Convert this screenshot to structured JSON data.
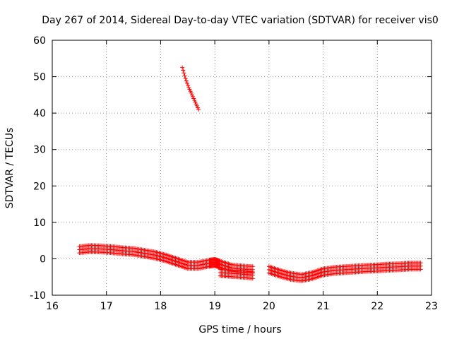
{
  "chart_data": {
    "type": "scatter",
    "title": "Day 267 of 2014, Sidereal Day-to-day VTEC variation (SDTVAR) for receiver vis0",
    "xlabel": "GPS time / hours",
    "ylabel": "SDTVAR / TECUs",
    "xlim": [
      16,
      23
    ],
    "ylim": [
      -10,
      60
    ],
    "xticks": [
      16,
      17,
      18,
      19,
      20,
      21,
      22,
      23
    ],
    "yticks": [
      -10,
      0,
      10,
      20,
      30,
      40,
      50,
      60
    ],
    "grid": true,
    "marker": "plus",
    "color": "#ff0000",
    "series": [
      {
        "x": [
          18.4,
          18.43,
          18.46,
          18.49,
          18.52,
          18.55,
          18.58,
          18.61,
          18.64,
          18.67,
          18.7
        ],
        "y": [
          52.5,
          51.0,
          49.5,
          48.2,
          47.0,
          46.0,
          45.0,
          44.0,
          43.0,
          42.0,
          41.0
        ]
      },
      {
        "x": [
          16.5,
          16.7,
          16.9,
          17.1,
          17.3,
          17.5,
          17.7,
          17.9,
          18.1,
          18.3,
          18.5,
          18.7,
          18.9,
          19.0,
          19.1,
          19.3,
          19.5,
          19.7
        ],
        "y": [
          2.5,
          2.8,
          2.7,
          2.5,
          2.2,
          2.0,
          1.5,
          1.0,
          0.2,
          -0.8,
          -1.8,
          -1.8,
          -1.2,
          -1.0,
          -1.5,
          -2.5,
          -2.8,
          -3.0
        ]
      },
      {
        "x": [
          19.1,
          19.3,
          19.5,
          19.7
        ],
        "y": [
          -3.8,
          -4.0,
          -4.2,
          -4.5
        ]
      },
      {
        "x": [
          20.0,
          20.2,
          20.4,
          20.6,
          20.8,
          21.0,
          21.2,
          21.4,
          21.6,
          21.8,
          22.0,
          22.2,
          22.4,
          22.6,
          22.8
        ],
        "y": [
          -3.0,
          -4.0,
          -4.8,
          -5.2,
          -4.6,
          -3.6,
          -3.2,
          -3.0,
          -2.8,
          -2.6,
          -2.5,
          -2.3,
          -2.2,
          -2.0,
          -2.0
        ]
      }
    ]
  }
}
